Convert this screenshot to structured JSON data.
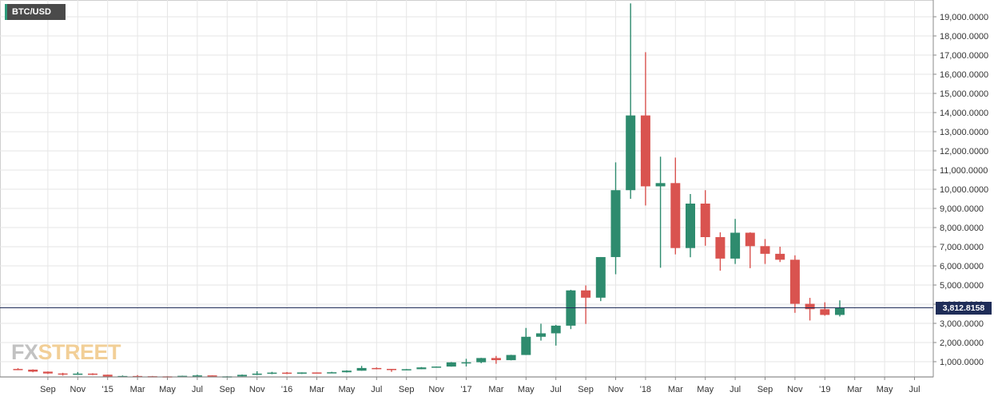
{
  "symbol_tag": "BTC/USD",
  "logo": {
    "fx": "FX",
    "street": "STREET"
  },
  "current_price_label": "3,812.8158",
  "colors": {
    "up": "#2e8b6e",
    "down": "#d9534f",
    "grid": "#e6e6e6",
    "price_line": "#1f2d58",
    "background": "#ffffff"
  },
  "chart_data": {
    "type": "candlestick",
    "title": "BTC/USD",
    "xlabel": "",
    "ylabel": "",
    "ylim": [
      -800,
      20000
    ],
    "yticks": [
      1000,
      2000,
      3000,
      4000,
      5000,
      6000,
      7000,
      8000,
      9000,
      10000,
      11000,
      12000,
      13000,
      14000,
      15000,
      16000,
      17000,
      18000,
      19000
    ],
    "ytick_labels": [
      "1,000.0000",
      "2,000.0000",
      "3,000.0000",
      "4,000.0000",
      "5,000.0000",
      "6,000.0000",
      "7,000.0000",
      "8,000.0000",
      "9,000.0000",
      "10,000.0000",
      "11,000.0000",
      "12,000.0000",
      "13,000.0000",
      "14,000.0000",
      "15,000.0000",
      "16,000.0000",
      "17,000.0000",
      "18,000.0000",
      "19,000.0000"
    ],
    "xtick_labels": [
      "Sep",
      "Nov",
      "'15",
      "Mar",
      "May",
      "Jul",
      "Sep",
      "Nov",
      "'16",
      "Mar",
      "May",
      "Jul",
      "Sep",
      "Nov",
      "'17",
      "Mar",
      "May",
      "Jul",
      "Sep",
      "Nov",
      "'18",
      "Mar",
      "May",
      "Jul",
      "Sep",
      "Nov",
      "'19",
      "Mar",
      "May",
      "Jul"
    ],
    "current_price": 3812.8158,
    "grid": true,
    "candles": [
      {
        "month": "2014-07",
        "open": 620,
        "high": 660,
        "low": 560,
        "close": 585
      },
      {
        "month": "2014-08",
        "open": 585,
        "high": 600,
        "low": 450,
        "close": 480
      },
      {
        "month": "2014-09",
        "open": 480,
        "high": 490,
        "low": 360,
        "close": 385
      },
      {
        "month": "2014-10",
        "open": 385,
        "high": 420,
        "low": 275,
        "close": 340
      },
      {
        "month": "2014-11",
        "open": 340,
        "high": 460,
        "low": 320,
        "close": 378
      },
      {
        "month": "2014-12",
        "open": 378,
        "high": 400,
        "low": 300,
        "close": 320
      },
      {
        "month": "2015-01",
        "open": 320,
        "high": 320,
        "low": 165,
        "close": 218
      },
      {
        "month": "2015-02",
        "open": 218,
        "high": 280,
        "low": 212,
        "close": 254
      },
      {
        "month": "2015-03",
        "open": 254,
        "high": 300,
        "low": 235,
        "close": 244
      },
      {
        "month": "2015-04",
        "open": 244,
        "high": 255,
        "low": 215,
        "close": 236
      },
      {
        "month": "2015-05",
        "open": 236,
        "high": 245,
        "low": 225,
        "close": 230
      },
      {
        "month": "2015-06",
        "open": 230,
        "high": 270,
        "low": 220,
        "close": 263
      },
      {
        "month": "2015-07",
        "open": 263,
        "high": 318,
        "low": 255,
        "close": 284
      },
      {
        "month": "2015-08",
        "open": 284,
        "high": 285,
        "low": 200,
        "close": 230
      },
      {
        "month": "2015-09",
        "open": 230,
        "high": 245,
        "low": 225,
        "close": 236
      },
      {
        "month": "2015-10",
        "open": 236,
        "high": 330,
        "low": 235,
        "close": 314
      },
      {
        "month": "2015-11",
        "open": 314,
        "high": 500,
        "low": 300,
        "close": 378
      },
      {
        "month": "2015-12",
        "open": 378,
        "high": 470,
        "low": 350,
        "close": 430
      },
      {
        "month": "2016-01",
        "open": 430,
        "high": 460,
        "low": 355,
        "close": 370
      },
      {
        "month": "2016-02",
        "open": 370,
        "high": 445,
        "low": 360,
        "close": 437
      },
      {
        "month": "2016-03",
        "open": 437,
        "high": 440,
        "low": 400,
        "close": 416
      },
      {
        "month": "2016-04",
        "open": 416,
        "high": 470,
        "low": 410,
        "close": 448
      },
      {
        "month": "2016-05",
        "open": 448,
        "high": 550,
        "low": 435,
        "close": 530
      },
      {
        "month": "2016-06",
        "open": 530,
        "high": 780,
        "low": 525,
        "close": 670
      },
      {
        "month": "2016-07",
        "open": 670,
        "high": 700,
        "low": 600,
        "close": 624
      },
      {
        "month": "2016-08",
        "open": 624,
        "high": 625,
        "low": 470,
        "close": 574
      },
      {
        "month": "2016-09",
        "open": 574,
        "high": 615,
        "low": 570,
        "close": 608
      },
      {
        "month": "2016-10",
        "open": 608,
        "high": 720,
        "low": 605,
        "close": 700
      },
      {
        "month": "2016-11",
        "open": 700,
        "high": 750,
        "low": 690,
        "close": 745
      },
      {
        "month": "2016-12",
        "open": 745,
        "high": 980,
        "low": 740,
        "close": 965
      },
      {
        "month": "2017-01",
        "open": 965,
        "high": 1150,
        "low": 750,
        "close": 970
      },
      {
        "month": "2017-02",
        "open": 970,
        "high": 1200,
        "low": 920,
        "close": 1190
      },
      {
        "month": "2017-03",
        "open": 1190,
        "high": 1300,
        "low": 890,
        "close": 1080
      },
      {
        "month": "2017-04",
        "open": 1080,
        "high": 1360,
        "low": 1070,
        "close": 1350
      },
      {
        "month": "2017-05",
        "open": 1350,
        "high": 2760,
        "low": 1350,
        "close": 2300
      },
      {
        "month": "2017-06",
        "open": 2300,
        "high": 2980,
        "low": 2100,
        "close": 2480
      },
      {
        "month": "2017-07",
        "open": 2480,
        "high": 2920,
        "low": 1840,
        "close": 2880
      },
      {
        "month": "2017-08",
        "open": 2880,
        "high": 4750,
        "low": 2700,
        "close": 4720
      },
      {
        "month": "2017-09",
        "open": 4720,
        "high": 4980,
        "low": 2970,
        "close": 4340
      },
      {
        "month": "2017-10",
        "open": 4340,
        "high": 6460,
        "low": 4160,
        "close": 6460
      },
      {
        "month": "2017-11",
        "open": 6460,
        "high": 11400,
        "low": 5560,
        "close": 9950
      },
      {
        "month": "2017-12",
        "open": 9950,
        "high": 19700,
        "low": 9500,
        "close": 13850
      },
      {
        "month": "2018-01",
        "open": 13850,
        "high": 17150,
        "low": 9150,
        "close": 10150
      },
      {
        "month": "2018-02",
        "open": 10150,
        "high": 11700,
        "low": 5900,
        "close": 10320
      },
      {
        "month": "2018-03",
        "open": 10320,
        "high": 11650,
        "low": 6600,
        "close": 6930
      },
      {
        "month": "2018-04",
        "open": 6930,
        "high": 9750,
        "low": 6450,
        "close": 9250
      },
      {
        "month": "2018-05",
        "open": 9250,
        "high": 9950,
        "low": 7050,
        "close": 7500
      },
      {
        "month": "2018-06",
        "open": 7500,
        "high": 7750,
        "low": 5750,
        "close": 6380
      },
      {
        "month": "2018-07",
        "open": 6380,
        "high": 8450,
        "low": 6100,
        "close": 7730
      },
      {
        "month": "2018-08",
        "open": 7730,
        "high": 7750,
        "low": 5880,
        "close": 7030
      },
      {
        "month": "2018-09",
        "open": 7030,
        "high": 7400,
        "low": 6100,
        "close": 6630
      },
      {
        "month": "2018-10",
        "open": 6630,
        "high": 7000,
        "low": 6200,
        "close": 6320
      },
      {
        "month": "2018-11",
        "open": 6320,
        "high": 6550,
        "low": 3550,
        "close": 4020
      },
      {
        "month": "2018-12",
        "open": 4020,
        "high": 4330,
        "low": 3150,
        "close": 3740
      },
      {
        "month": "2019-01",
        "open": 3740,
        "high": 4100,
        "low": 3400,
        "close": 3440
      },
      {
        "month": "2019-02",
        "open": 3440,
        "high": 4200,
        "low": 3360,
        "close": 3812
      }
    ]
  }
}
